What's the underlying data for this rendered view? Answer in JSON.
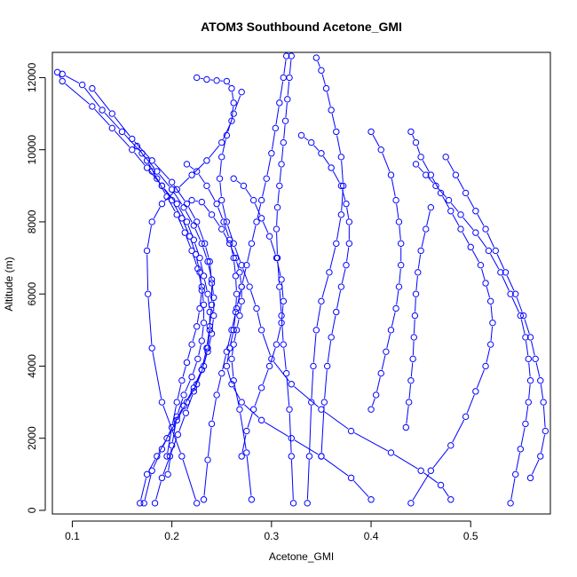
{
  "chart_data": {
    "type": "line",
    "title": "ATOM3 Southbound Acetone_GMI",
    "xlabel": "Acetone_GMI",
    "ylabel": "Altitude (m)",
    "xlim": [
      0.08,
      0.58
    ],
    "ylim": [
      -100,
      12700
    ],
    "xticks": [
      "0.1",
      "0.2",
      "0.3",
      "0.4",
      "0.5"
    ],
    "yticks": [
      "0",
      "2000",
      "4000",
      "6000",
      "8000",
      "10000",
      "12000"
    ],
    "grid": false,
    "legend": "none",
    "marker": "open-circle",
    "color": "#0000ff",
    "series": [
      {
        "x": [
          0.085,
          0.09,
          0.12,
          0.14,
          0.16,
          0.175,
          0.19,
          0.205,
          0.215,
          0.222,
          0.228,
          0.232,
          0.236,
          0.238,
          0.238,
          0.236,
          0.232,
          0.225,
          0.215,
          0.205,
          0.195,
          0.185,
          0.175,
          0.168
        ],
        "y": [
          12150,
          11900,
          11200,
          10600,
          10000,
          9500,
          9000,
          8500,
          8000,
          7500,
          7000,
          6500,
          6000,
          5500,
          5000,
          4500,
          4000,
          3500,
          3000,
          2500,
          2000,
          1500,
          1000,
          200
        ]
      },
      {
        "x": [
          0.09,
          0.11,
          0.13,
          0.15,
          0.17,
          0.185,
          0.2,
          0.212,
          0.222,
          0.23,
          0.236,
          0.24,
          0.242,
          0.242,
          0.24,
          0.236,
          0.23,
          0.222,
          0.212,
          0.2,
          0.19,
          0.18,
          0.172
        ],
        "y": [
          12100,
          11800,
          11100,
          10500,
          9900,
          9400,
          8900,
          8400,
          7900,
          7400,
          6900,
          6400,
          5900,
          5400,
          4900,
          4400,
          3900,
          3400,
          2900,
          2300,
          1700,
          1100,
          200
        ]
      },
      {
        "x": [
          0.12,
          0.14,
          0.16,
          0.18,
          0.2,
          0.215,
          0.225,
          0.233,
          0.238,
          0.24,
          0.24,
          0.238,
          0.235,
          0.23,
          0.222,
          0.214,
          0.206,
          0.198,
          0.19,
          0.183
        ],
        "y": [
          11700,
          11000,
          10300,
          9700,
          9100,
          8500,
          8000,
          7400,
          6900,
          6300,
          5700,
          5100,
          4500,
          3900,
          3300,
          2700,
          2100,
          1500,
          900,
          200
        ]
      },
      {
        "x": [
          0.225,
          0.235,
          0.245,
          0.255,
          0.26,
          0.262,
          0.26,
          0.25,
          0.235,
          0.22,
          0.205,
          0.19,
          0.18,
          0.175,
          0.176,
          0.18,
          0.19,
          0.21,
          0.225
        ],
        "y": [
          12000,
          11950,
          11920,
          11900,
          11700,
          11300,
          10800,
          10200,
          9700,
          9300,
          8900,
          8500,
          8000,
          7200,
          6000,
          4500,
          3000,
          1500,
          200
        ]
      },
      {
        "x": [
          0.27,
          0.262,
          0.255,
          0.25,
          0.248,
          0.25,
          0.255,
          0.262,
          0.27,
          0.278,
          0.285,
          0.29,
          0.3,
          0.32,
          0.35,
          0.38,
          0.42,
          0.45,
          0.47,
          0.48
        ],
        "y": [
          11600,
          11000,
          10400,
          9800,
          9200,
          8600,
          8000,
          7400,
          6800,
          6200,
          5600,
          5000,
          4200,
          3500,
          2800,
          2200,
          1600,
          1100,
          700,
          300
        ]
      },
      {
        "x": [
          0.215,
          0.225,
          0.235,
          0.245,
          0.252,
          0.258,
          0.262,
          0.264,
          0.265,
          0.264,
          0.262,
          0.258,
          0.255,
          0.26,
          0.27,
          0.29,
          0.32,
          0.35,
          0.38,
          0.4
        ],
        "y": [
          9600,
          9400,
          9000,
          8500,
          8000,
          7500,
          7000,
          6500,
          6000,
          5500,
          5000,
          4500,
          4000,
          3500,
          3000,
          2500,
          2000,
          1500,
          900,
          300
        ]
      },
      {
        "x": [
          0.22,
          0.23,
          0.24,
          0.25,
          0.258,
          0.264,
          0.268,
          0.27,
          0.27,
          0.268,
          0.265,
          0.262,
          0.26,
          0.262,
          0.268,
          0.275,
          0.28
        ],
        "y": [
          8600,
          8550,
          8200,
          7800,
          7400,
          7000,
          6600,
          6200,
          5800,
          5400,
          5000,
          4600,
          4200,
          3600,
          2800,
          1600,
          300
        ]
      },
      {
        "x": [
          0.315,
          0.312,
          0.308,
          0.304,
          0.3,
          0.295,
          0.29,
          0.285,
          0.28,
          0.275,
          0.27,
          0.265,
          0.26,
          0.255,
          0.25,
          0.245,
          0.24,
          0.236,
          0.232
        ],
        "y": [
          12600,
          12000,
          11300,
          10600,
          9900,
          9200,
          8600,
          8000,
          7400,
          6800,
          6200,
          5600,
          5000,
          4400,
          3800,
          3200,
          2400,
          1400,
          300
        ]
      },
      {
        "x": [
          0.32,
          0.318,
          0.316,
          0.314,
          0.312,
          0.31,
          0.308,
          0.306,
          0.305,
          0.306,
          0.308,
          0.31,
          0.312,
          0.315,
          0.318,
          0.32,
          0.322
        ],
        "y": [
          12600,
          12000,
          11400,
          10800,
          10200,
          9600,
          9000,
          8400,
          7800,
          7000,
          6200,
          5400,
          4600,
          3800,
          2800,
          1500,
          200
        ]
      },
      {
        "x": [
          0.345,
          0.35,
          0.355,
          0.36,
          0.365,
          0.37,
          0.372,
          0.37,
          0.365,
          0.358,
          0.35,
          0.345,
          0.342,
          0.34,
          0.338,
          0.336
        ],
        "y": [
          12550,
          12200,
          11700,
          11100,
          10500,
          9800,
          9000,
          8200,
          7400,
          6600,
          5800,
          5000,
          4000,
          3000,
          1500,
          200
        ]
      },
      {
        "x": [
          0.33,
          0.34,
          0.35,
          0.36,
          0.37,
          0.375,
          0.378,
          0.378,
          0.375,
          0.37,
          0.365,
          0.36,
          0.356,
          0.353,
          0.35
        ],
        "y": [
          10400,
          10200,
          9900,
          9500,
          9000,
          8500,
          8000,
          7400,
          6800,
          6200,
          5500,
          4800,
          4000,
          3000,
          1500
        ]
      },
      {
        "x": [
          0.4,
          0.41,
          0.42,
          0.425,
          0.428,
          0.43,
          0.43,
          0.428,
          0.425,
          0.42,
          0.415,
          0.41,
          0.405,
          0.4
        ],
        "y": [
          10500,
          10000,
          9300,
          8600,
          8000,
          7400,
          6800,
          6200,
          5600,
          5000,
          4400,
          3800,
          3200,
          2800
        ]
      },
      {
        "x": [
          0.44,
          0.445,
          0.45,
          0.46,
          0.47,
          0.48,
          0.49,
          0.5,
          0.51,
          0.515,
          0.52,
          0.522,
          0.52,
          0.515,
          0.505,
          0.495,
          0.48,
          0.46,
          0.44
        ],
        "y": [
          10500,
          10200,
          9800,
          9300,
          8800,
          8300,
          7800,
          7300,
          6800,
          6300,
          5800,
          5200,
          4600,
          4000,
          3300,
          2600,
          1800,
          1100,
          200
        ]
      },
      {
        "x": [
          0.445,
          0.455,
          0.465,
          0.478,
          0.49,
          0.505,
          0.518,
          0.53,
          0.54,
          0.55,
          0.555,
          0.558,
          0.56,
          0.558,
          0.555,
          0.55,
          0.545,
          0.54
        ],
        "y": [
          9600,
          9300,
          9000,
          8600,
          8200,
          7700,
          7200,
          6600,
          6000,
          5400,
          4800,
          4200,
          3600,
          3000,
          2400,
          1700,
          1000,
          200
        ]
      },
      {
        "x": [
          0.475,
          0.485,
          0.495,
          0.505,
          0.515,
          0.525,
          0.535,
          0.545,
          0.553,
          0.56,
          0.565,
          0.57,
          0.573,
          0.575,
          0.57,
          0.56
        ],
        "y": [
          9800,
          9300,
          8800,
          8300,
          7800,
          7200,
          6600,
          6000,
          5400,
          4800,
          4200,
          3600,
          3000,
          2200,
          1500,
          900
        ]
      },
      {
        "x": [
          0.46,
          0.455,
          0.45,
          0.447,
          0.445,
          0.444,
          0.443,
          0.442,
          0.44,
          0.438,
          0.435
        ],
        "y": [
          8400,
          7800,
          7200,
          6600,
          6000,
          5400,
          4800,
          4200,
          3600,
          3000,
          2300
        ]
      },
      {
        "x": [
          0.165,
          0.175,
          0.185,
          0.195,
          0.205,
          0.213,
          0.22,
          0.226,
          0.23,
          0.232,
          0.232,
          0.23,
          0.226,
          0.22,
          0.212,
          0.205,
          0.2,
          0.196
        ],
        "y": [
          10100,
          9700,
          9200,
          8700,
          8200,
          7700,
          7200,
          6700,
          6200,
          5700,
          5200,
          4700,
          4200,
          3700,
          3200,
          2600,
          1800,
          1000
        ]
      },
      {
        "x": [
          0.18,
          0.19,
          0.2,
          0.21,
          0.218,
          0.224,
          0.228,
          0.23,
          0.228,
          0.225,
          0.22,
          0.215,
          0.21,
          0.205,
          0.2,
          0.195
        ],
        "y": [
          9400,
          9000,
          8600,
          8100,
          7600,
          7100,
          6600,
          6100,
          5600,
          5100,
          4600,
          4100,
          3600,
          3000,
          2300,
          1500
        ]
      },
      {
        "x": [
          0.262,
          0.272,
          0.282,
          0.29,
          0.298,
          0.305,
          0.31,
          0.312,
          0.31,
          0.305,
          0.298,
          0.29,
          0.282,
          0.275,
          0.27
        ],
        "y": [
          9200,
          9000,
          8600,
          8100,
          7600,
          7000,
          6400,
          5800,
          5200,
          4600,
          4000,
          3400,
          2800,
          2200,
          1500
        ]
      }
    ]
  }
}
